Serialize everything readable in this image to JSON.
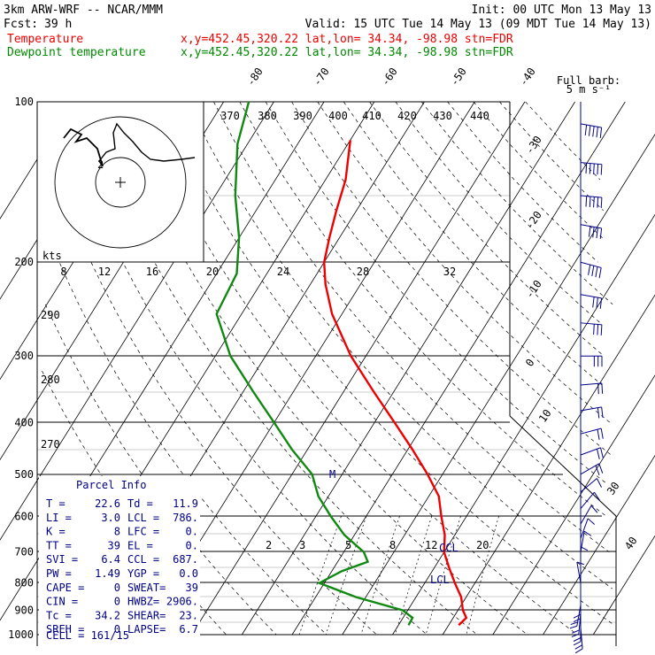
{
  "header": {
    "model": "3km ARW-WRF -- NCAR/MMM",
    "init": "Init: 00 UTC Mon 13 May 13",
    "fcst_label": "Fcst:",
    "fcst_value": "39 h",
    "valid": "Valid: 15 UTC Tue 14 May 13 (09 MDT Tue 14 May 13)",
    "temp_label": "Temperature",
    "temp_coords": "x,y=452.45,320.22   lat,lon= 34.34, -98.98  stn=FDR",
    "dew_label": "Dewpoint temperature",
    "dew_coords": "x,y=452.45,320.22   lat,lon= 34.34, -98.98  stn=FDR"
  },
  "colors": {
    "temperature": "#ee0000",
    "dewpoint": "#118811",
    "barbs": "#000088",
    "grid": "#000000"
  },
  "barb_legend": {
    "line1": "Full barb:",
    "line2": "5 m s⁻¹"
  },
  "hodograph": {
    "units_label": "kts",
    "speed_labels": [
      "8",
      "12",
      "16",
      "20",
      "24",
      "28",
      "32"
    ],
    "theta_labels": [
      "370",
      "380",
      "390",
      "400",
      "410",
      "420",
      "430",
      "440"
    ],
    "side_labels": [
      "290",
      "280",
      "270"
    ],
    "point_labels": [
      "2",
      "3"
    ]
  },
  "parcel": {
    "title": "Parcel Info",
    "rows": [
      [
        "T  =",
        "22.6",
        "Td =",
        "11.9"
      ],
      [
        "LI =",
        "3.0",
        "LCL =",
        "786."
      ],
      [
        "K  =",
        "8",
        "LFC =",
        "0."
      ],
      [
        "TT =",
        "39",
        "EL  =",
        "0."
      ],
      [
        "SVI =",
        "6.4",
        "CCL =",
        "687."
      ],
      [
        "PW =",
        "1.49",
        "YGP =",
        "0.0"
      ],
      [
        "CAPE =",
        "0",
        "SWEAT=",
        "39"
      ],
      [
        "CIN =",
        "0",
        "HWBZ=",
        "2906."
      ],
      [
        "Tc =",
        "34.2",
        "SHEAR=",
        "23."
      ],
      [
        "SREH =",
        "0",
        "LAPSE=",
        "6.7"
      ]
    ],
    "cell": "CELL = 161/15"
  },
  "chart_data": {
    "type": "line",
    "diagram": "skew-T log-p",
    "pressure_levels": [
      100,
      200,
      300,
      400,
      500,
      600,
      700,
      800,
      900,
      1000
    ],
    "pressure_labels": [
      "100",
      "200",
      "300",
      "400",
      "500",
      "600",
      "700",
      "800",
      "900",
      "1000"
    ],
    "isotherm_labels": [
      "-80",
      "-70",
      "-60",
      "-50",
      "-40",
      "-30",
      "-20",
      "-10",
      "0",
      "10",
      "30",
      "40"
    ],
    "mixing_ratio_labels": [
      "5",
      "8",
      "12",
      "20"
    ],
    "markers": {
      "ccl": "CCL",
      "lcl": "LCL",
      "m": "M"
    },
    "series": [
      {
        "name": "Temperature",
        "p": [
          118,
          140,
          160,
          180,
          200,
          220,
          250,
          300,
          350,
          400,
          450,
          500,
          550,
          600,
          650,
          700,
          750,
          800,
          850,
          900,
          930,
          960
        ],
        "t": [
          -60,
          -56,
          -54,
          -52,
          -50,
          -47,
          -42,
          -33,
          -24,
          -16,
          -9,
          -3,
          2,
          5,
          8,
          10,
          13,
          16,
          19,
          21,
          22.6,
          22
        ]
      },
      {
        "name": "Dewpoint temperature",
        "p": [
          100,
          120,
          150,
          180,
          210,
          250,
          300,
          350,
          400,
          450,
          500,
          550,
          600,
          650,
          700,
          730,
          760,
          800,
          850,
          900,
          930,
          960
        ],
        "t": [
          -85,
          -82,
          -76,
          -70,
          -66,
          -65,
          -57,
          -48,
          -40,
          -33,
          -26,
          -22,
          -17,
          -12,
          -6,
          -4,
          -8,
          -11,
          -2,
          9,
          11.9,
          12
        ]
      }
    ],
    "wind_barbs": {
      "p": [
        110,
        130,
        150,
        170,
        200,
        230,
        260,
        300,
        340,
        380,
        420,
        460,
        500,
        540,
        580,
        620,
        660,
        700,
        750,
        800,
        850,
        880,
        910,
        940,
        970
      ],
      "dir": [
        260,
        265,
        265,
        260,
        255,
        260,
        265,
        270,
        275,
        280,
        285,
        290,
        300,
        310,
        320,
        330,
        340,
        350,
        360,
        10,
        180,
        170,
        175,
        180,
        185
      ],
      "speed_ms": [
        25,
        25,
        25,
        22,
        20,
        18,
        16,
        15,
        14,
        13,
        12,
        11,
        10,
        8,
        6,
        5,
        5,
        5,
        6,
        5,
        10,
        12,
        12,
        11,
        10
      ]
    }
  }
}
